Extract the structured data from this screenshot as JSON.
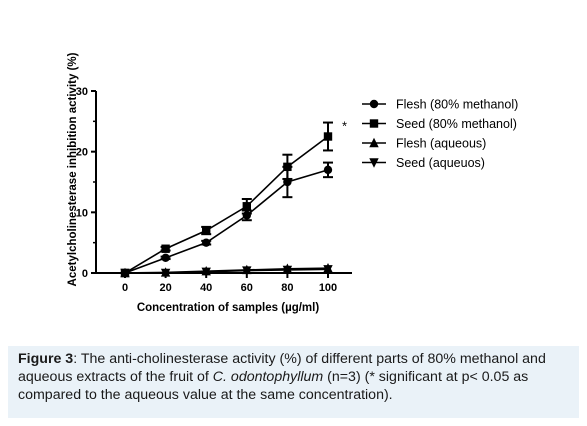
{
  "chart_data": {
    "type": "line",
    "ylabel": "Acetylcholinesterase inhibition activity (%)",
    "xlabel": "Concentration of samples  (µg/ml)",
    "x": [
      0,
      20,
      40,
      60,
      80,
      100
    ],
    "x_tick_labels": [
      "0",
      "20",
      "40",
      "60",
      "80",
      "100"
    ],
    "ylim": [
      0,
      30
    ],
    "y_ticks": [
      0,
      10,
      20,
      30
    ],
    "y_tick_labels": [
      "0",
      "10",
      "20",
      "30"
    ],
    "grid": false,
    "legend_position": "right",
    "series": [
      {
        "name": "Flesh (80% methanol)",
        "marker": "circle",
        "values": [
          0,
          2.5,
          5,
          9.5,
          15,
          17
        ],
        "errors": [
          0,
          0.2,
          0.3,
          0.8,
          2.5,
          1.2
        ]
      },
      {
        "name": "Seed (80% methanol)",
        "marker": "square",
        "values": [
          0,
          4,
          7,
          11,
          17.5,
          22.5
        ],
        "errors": [
          0,
          0.3,
          0.6,
          1.2,
          2.0,
          2.3
        ]
      },
      {
        "name": "Flesh (aqueous)",
        "marker": "triangle-up",
        "values": [
          0,
          0.1,
          0.3,
          0.5,
          0.7,
          0.8
        ],
        "errors": [
          0,
          0.05,
          0.1,
          0.1,
          0.1,
          0.1
        ]
      },
      {
        "name": "Seed (aqueuos)",
        "marker": "triangle-down",
        "values": [
          0,
          0,
          0.2,
          0.4,
          0.5,
          0.6
        ],
        "errors": [
          0,
          0.05,
          0.1,
          0.1,
          0.1,
          0.1
        ]
      }
    ],
    "annotations": [
      {
        "text": "*",
        "x": 100,
        "y": 22.5
      }
    ]
  },
  "caption": {
    "label": "Figure 3",
    "text_before_species": ": The anti-cholinesterase activity (%) of different parts of 80% methanol and aqueous extracts of the fruit of ",
    "species": "C. odontophyllum",
    "text_after_species": " (n=3) (* significant at p< 0.05 as compared to the aqueous value at the same concentration)."
  }
}
